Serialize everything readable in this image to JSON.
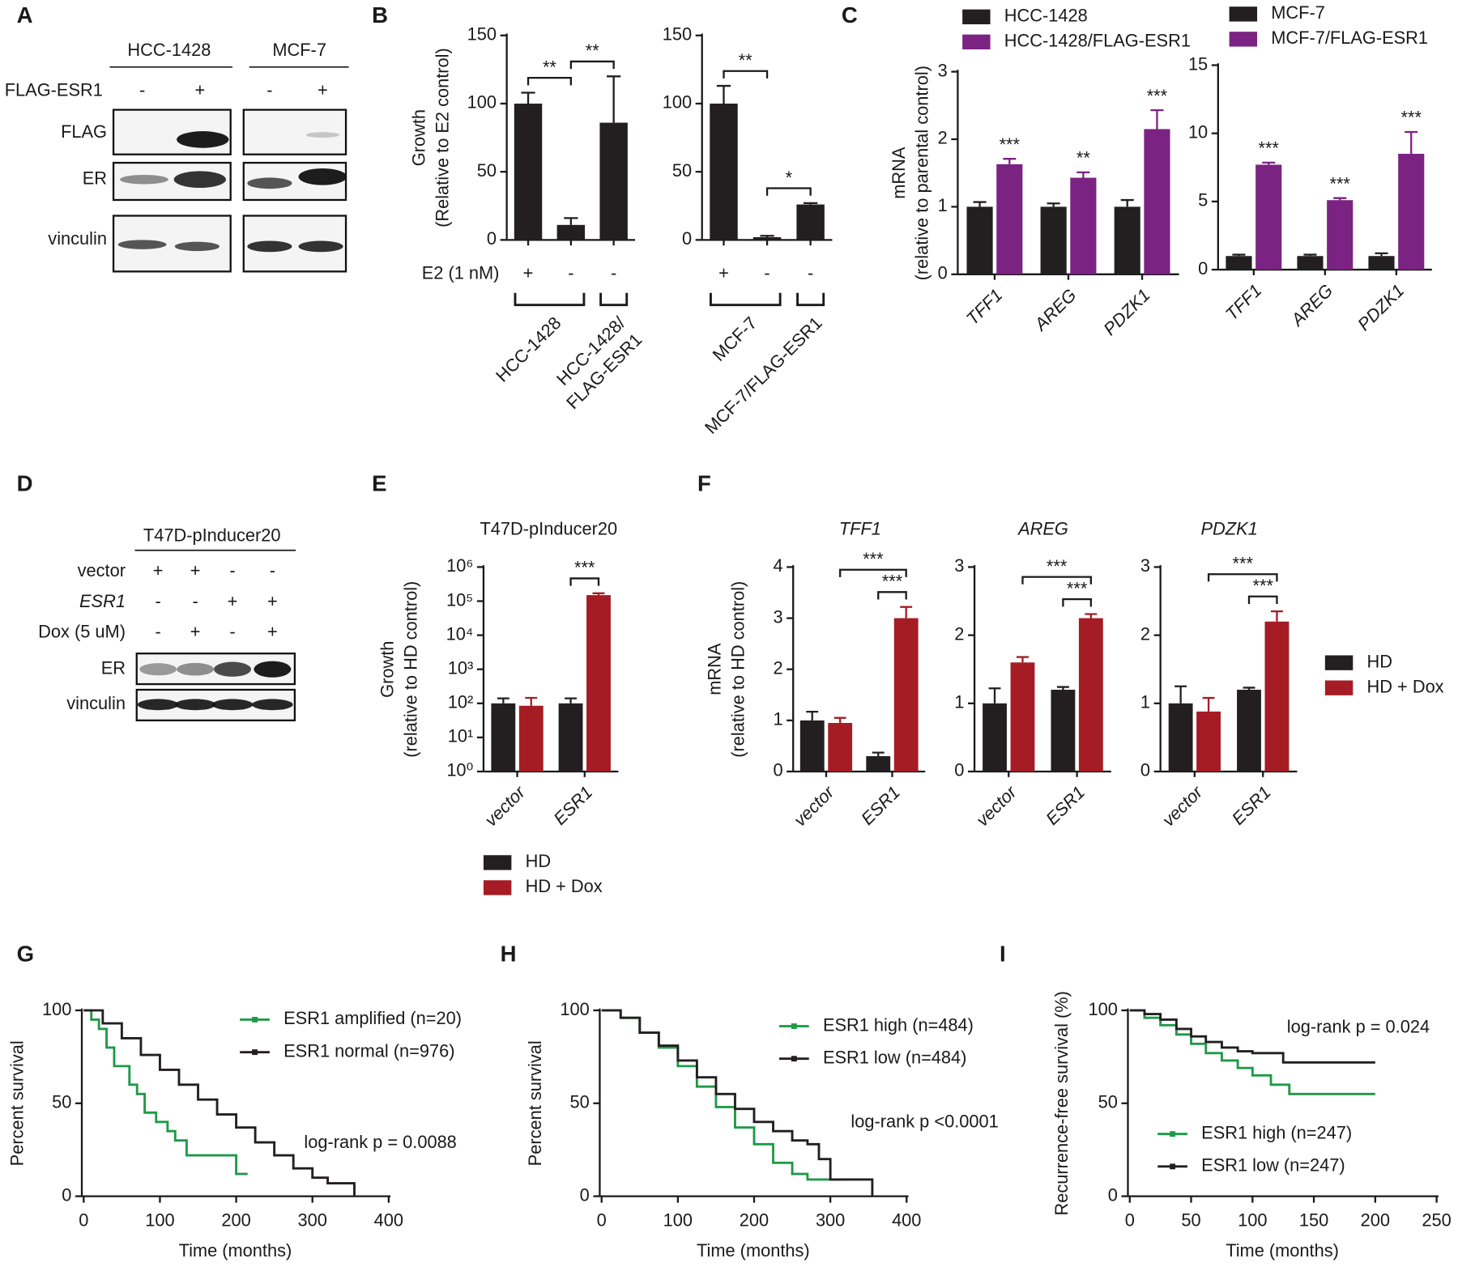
{
  "panel_labels": [
    "A",
    "B",
    "C",
    "D",
    "E",
    "F",
    "G",
    "H",
    "I"
  ],
  "blots": [
    {
      "groups": [
        "HCC-1428",
        "MCF-7"
      ],
      "condition": "FLAG-ESR1",
      "lanes": [
        "-",
        "+",
        "-",
        "+"
      ],
      "rows": [
        "FLAG",
        "ER",
        "vinculin"
      ]
    },
    {
      "title": "T47D-pInducer20",
      "conditions": [
        {
          "label": "vector",
          "lanes": [
            "+",
            "+",
            "-",
            "-"
          ]
        },
        {
          "label": "ESR1",
          "lanes": [
            "-",
            "-",
            "+",
            "+"
          ]
        },
        {
          "label": "Dox (5 uM)",
          "lanes": [
            "-",
            "+",
            "-",
            "+"
          ]
        }
      ],
      "rows": [
        "ER",
        "vinculin"
      ]
    }
  ],
  "chart_data": [
    {
      "type": "bar",
      "ylabel": [
        "Growth",
        "(Relative to E2 control)"
      ],
      "x_row_label": "E2 (1 nM)",
      "categories": [
        "+",
        "-",
        "-"
      ],
      "values": [
        100,
        11,
        86
      ],
      "errors": [
        8,
        5,
        34
      ],
      "color": "#231f20",
      "ylim": [
        0,
        150
      ],
      "yticks": [
        0,
        50,
        100,
        150
      ],
      "brackets": [
        {
          "label": "**",
          "bars": [
            0,
            1
          ]
        },
        {
          "label": "**",
          "bars": [
            1,
            2
          ]
        }
      ],
      "groups": [
        {
          "label": [
            "HCC-1428"
          ],
          "bars": [
            0,
            1
          ]
        },
        {
          "label": [
            "HCC-1428/",
            "FLAG-ESR1"
          ],
          "bars": [
            2,
            2
          ]
        }
      ]
    },
    {
      "type": "bar",
      "categories": [
        "+",
        "-",
        "-"
      ],
      "values": [
        100,
        2,
        26
      ],
      "errors": [
        13,
        1,
        1
      ],
      "color": "#231f20",
      "ylim": [
        0,
        150
      ],
      "yticks": [
        0,
        50,
        100,
        150
      ],
      "brackets": [
        {
          "label": "**",
          "bars": [
            0,
            1
          ]
        },
        {
          "label": "*",
          "bars": [
            1,
            2
          ]
        }
      ],
      "groups": [
        {
          "label": [
            "MCF-7"
          ],
          "bars": [
            0,
            1
          ]
        },
        {
          "label": [
            "MCF-7/FLAG-ESR1"
          ],
          "bars": [
            2,
            2
          ]
        }
      ]
    },
    {
      "type": "bar",
      "ylabel": [
        "mRNA",
        "(relative to parental control)"
      ],
      "categories": [
        "TFF1",
        "AREG",
        "PDZK1"
      ],
      "series": [
        {
          "name": "HCC-1428",
          "color": "#231f20",
          "values": [
            1,
            1,
            1
          ],
          "errors": [
            0.07,
            0.05,
            0.1
          ]
        },
        {
          "name": "HCC-1428/FLAG-ESR1",
          "color": "#7b2382",
          "values": [
            1.63,
            1.43,
            2.15
          ],
          "errors": [
            0.08,
            0.08,
            0.28
          ],
          "significance": [
            "***",
            "**",
            "***"
          ]
        }
      ],
      "ylim": [
        0,
        3
      ],
      "yticks": [
        0,
        1,
        2,
        3
      ]
    },
    {
      "type": "bar",
      "categories": [
        "TFF1",
        "AREG",
        "PDZK1"
      ],
      "series": [
        {
          "name": "MCF-7",
          "color": "#231f20",
          "values": [
            1,
            1,
            1
          ],
          "errors": [
            0.1,
            0.1,
            0.2
          ]
        },
        {
          "name": "MCF-7/FLAG-ESR1",
          "color": "#7b2382",
          "values": [
            7.7,
            5.1,
            8.5
          ],
          "errors": [
            0.15,
            0.15,
            1.6
          ],
          "significance": [
            "***",
            "***",
            "***"
          ]
        }
      ],
      "ylim": [
        0,
        15
      ],
      "yticks": [
        0,
        5,
        10,
        15
      ]
    },
    {
      "type": "bar",
      "title": "T47D-pInducer20",
      "ylabel": [
        "Growth",
        "(relative to  HD control)"
      ],
      "log_scale": true,
      "categories": [
        "vector",
        "ESR1"
      ],
      "series": [
        {
          "name": "HD",
          "color": "#231f20",
          "values": [
            100,
            100
          ],
          "errors": [
            40,
            40
          ]
        },
        {
          "name": "HD + Dox",
          "color": "#a51c24",
          "values": [
            85,
            150000
          ],
          "errors": [
            60,
            20000
          ]
        }
      ],
      "ylim": [
        1,
        1000000
      ],
      "yticks": [
        {
          "value": 1,
          "label": "10⁰"
        },
        {
          "value": 10,
          "label": "10¹"
        },
        {
          "value": 100,
          "label": "10²"
        },
        {
          "value": 1000,
          "label": "10³"
        },
        {
          "value": 10000,
          "label": "10⁴"
        },
        {
          "value": 100000,
          "label": "10⁵"
        },
        {
          "value": 1000000,
          "label": "10⁶"
        }
      ],
      "brackets": [
        {
          "label": "***",
          "bars": [
            2,
            3
          ]
        }
      ]
    },
    {
      "type": "bar",
      "title": "TFF1",
      "ylabel": [
        "mRNA",
        "(relative to HD control)"
      ],
      "categories": [
        "vector",
        "ESR1"
      ],
      "series": [
        {
          "name": "HD",
          "color": "#231f20",
          "values": [
            1.0,
            0.3
          ],
          "errors": [
            0.17,
            0.07
          ]
        },
        {
          "name": "HD + Dox",
          "color": "#a51c24",
          "values": [
            0.95,
            3.0
          ],
          "errors": [
            0.1,
            0.22
          ]
        }
      ],
      "ylim": [
        0,
        4
      ],
      "yticks": [
        0,
        1,
        2,
        3,
        4
      ],
      "brackets": [
        {
          "label": "***",
          "bars": [
            2,
            3
          ]
        },
        {
          "label": "***",
          "bars": [
            1,
            3
          ]
        }
      ]
    },
    {
      "type": "bar",
      "title": "AREG",
      "categories": [
        "vector",
        "ESR1"
      ],
      "series": [
        {
          "color": "#231f20",
          "values": [
            1.0,
            1.2
          ],
          "errors": [
            0.22,
            0.04
          ]
        },
        {
          "color": "#a51c24",
          "values": [
            1.6,
            2.25
          ],
          "errors": [
            0.08,
            0.06
          ]
        }
      ],
      "ylim": [
        0,
        3
      ],
      "yticks": [
        0,
        1,
        2,
        3
      ],
      "brackets": [
        {
          "label": "***",
          "bars": [
            2,
            3
          ]
        },
        {
          "label": "***",
          "bars": [
            1,
            3
          ]
        }
      ]
    },
    {
      "type": "bar",
      "title": "PDZK1",
      "categories": [
        "vector",
        "ESR1"
      ],
      "series": [
        {
          "color": "#231f20",
          "values": [
            1.0,
            1.2
          ],
          "errors": [
            0.25,
            0.03
          ]
        },
        {
          "color": "#a51c24",
          "values": [
            0.88,
            2.2
          ],
          "errors": [
            0.2,
            0.15
          ]
        }
      ],
      "ylim": [
        0,
        3
      ],
      "yticks": [
        0,
        1,
        2,
        3
      ],
      "brackets": [
        {
          "label": "***",
          "bars": [
            2,
            3
          ]
        },
        {
          "label": "***",
          "bars": [
            1,
            3
          ]
        }
      ]
    },
    {
      "type": "step",
      "ylabel": "Percent survival",
      "xlabel": "Time (months)",
      "annotation": "log-rank p = 0.0088",
      "series": [
        {
          "name": "ESR1 amplified (n=20)",
          "color": "#1f9a48",
          "x": [
            0,
            10,
            20,
            30,
            40,
            60,
            70,
            80,
            95,
            110,
            120,
            135,
            150,
            200,
            215
          ],
          "y": [
            100,
            95,
            90,
            80,
            70,
            60,
            55,
            45,
            40,
            35,
            30,
            22,
            22,
            12,
            12
          ]
        },
        {
          "name": "ESR1 normal  (n=976)",
          "color": "#231f20",
          "x": [
            0,
            25,
            50,
            75,
            100,
            125,
            150,
            175,
            200,
            225,
            250,
            275,
            300,
            320,
            355
          ],
          "y": [
            100,
            93,
            85,
            76,
            68,
            60,
            52,
            44,
            37,
            29,
            22,
            15,
            10,
            7,
            0
          ]
        }
      ],
      "xlim": [
        0,
        400
      ],
      "xticks": [
        0,
        100,
        200,
        300,
        400
      ],
      "ylim": [
        0,
        100
      ],
      "yticks": [
        0,
        50,
        100
      ]
    },
    {
      "type": "step",
      "ylabel": "Percent survival",
      "xlabel": "Time (months)",
      "annotation": "log-rank p <0.0001",
      "series": [
        {
          "name": "ESR1 high (n=484)",
          "color": "#1f9a48",
          "x": [
            0,
            25,
            50,
            75,
            100,
            125,
            150,
            175,
            200,
            225,
            250,
            270,
            320
          ],
          "y": [
            100,
            96,
            88,
            80,
            70,
            59,
            48,
            37,
            28,
            18,
            12,
            9,
            9
          ]
        },
        {
          "name": "ESR1 low (n=484)",
          "color": "#231f20",
          "x": [
            0,
            25,
            50,
            75,
            100,
            125,
            150,
            175,
            200,
            225,
            250,
            270,
            285,
            300,
            355
          ],
          "y": [
            100,
            96,
            88,
            81,
            73,
            64,
            55,
            47,
            40,
            35,
            30,
            28,
            20,
            9,
            0
          ]
        }
      ],
      "xlim": [
        0,
        400
      ],
      "xticks": [
        0,
        100,
        200,
        300,
        400
      ],
      "ylim": [
        0,
        100
      ],
      "yticks": [
        0,
        50,
        100
      ]
    },
    {
      "type": "step",
      "ylabel": "Recurrence-free survival  (%)",
      "xlabel": "Time (months)",
      "annotation": "log-rank p = 0.024",
      "series": [
        {
          "name": "ESR1 high  (n=247)",
          "color": "#1f9a48",
          "x": [
            0,
            12,
            25,
            38,
            50,
            62,
            75,
            88,
            100,
            115,
            130,
            200
          ],
          "y": [
            100,
            96,
            92,
            87,
            82,
            77,
            73,
            69,
            65,
            60,
            55,
            55
          ]
        },
        {
          "name": "ESR1 low  (n=247)",
          "color": "#231f20",
          "x": [
            0,
            12,
            25,
            38,
            50,
            62,
            75,
            88,
            100,
            125,
            200
          ],
          "y": [
            100,
            98,
            95,
            90,
            86,
            83,
            80,
            78,
            77,
            72,
            72
          ]
        }
      ],
      "xlim": [
        0,
        250
      ],
      "xticks": [
        0,
        50,
        100,
        150,
        200,
        250
      ],
      "ylim": [
        0,
        100
      ],
      "yticks": [
        0,
        50,
        100
      ]
    }
  ]
}
